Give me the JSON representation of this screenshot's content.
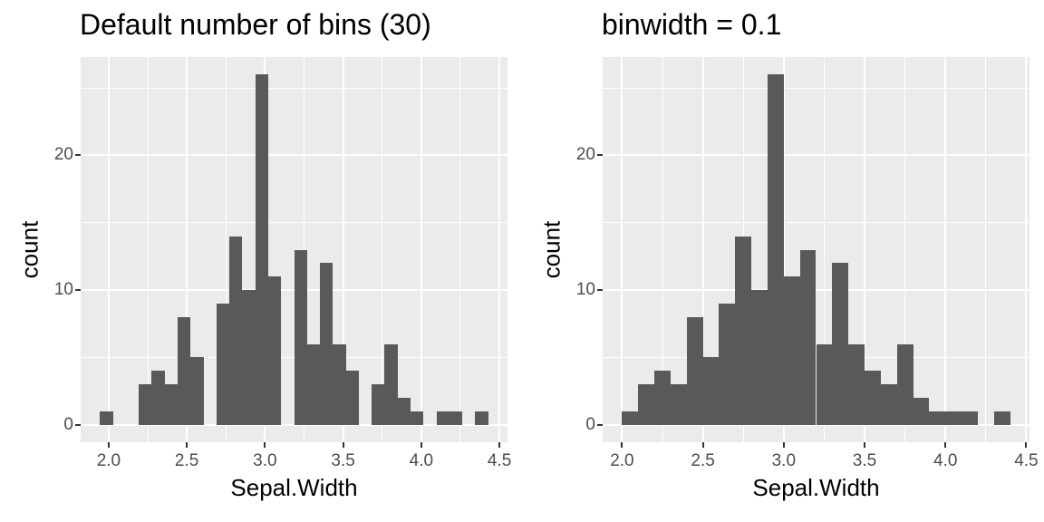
{
  "style": {
    "background": "#FFFFFF",
    "panel_bg": "#EBEBEB",
    "grid_color": "#FFFFFF",
    "bar_color": "#595959",
    "tick_text_color": "#4D4D4D",
    "tick_mark_color": "#333333",
    "title_color": "#000000"
  },
  "chart_data": [
    {
      "type": "bar",
      "subtype": "histogram",
      "title": "Default number of bins (30)",
      "xlabel": "Sepal.Width",
      "ylabel": "count",
      "bar_color": "#595959",
      "grid": true,
      "legend": false,
      "binwidth": 0.0827586,
      "x_domain": [
        1.82069,
        4.55172
      ],
      "y_domain": [
        -1.3,
        27.3
      ],
      "x_major_ticks": [
        2.0,
        2.5,
        3.0,
        3.5,
        4.0,
        4.5
      ],
      "x_tick_labels": [
        "2.0",
        "2.5",
        "3.0",
        "3.5",
        "4.0",
        "4.5"
      ],
      "x_minor_ticks": [
        2.25,
        2.75,
        3.25,
        3.75,
        4.25
      ],
      "y_major_ticks": [
        0,
        10,
        20
      ],
      "y_tick_labels": [
        "0",
        "10",
        "20"
      ],
      "y_minor_ticks": [
        5,
        15,
        25
      ],
      "bins": [
        [
          1.94483,
          1
        ],
        [
          2.1931,
          3
        ],
        [
          2.27586,
          4
        ],
        [
          2.35862,
          3
        ],
        [
          2.44138,
          8
        ],
        [
          2.52414,
          5
        ],
        [
          2.68966,
          9
        ],
        [
          2.77241,
          14
        ],
        [
          2.85517,
          10
        ],
        [
          2.93793,
          26
        ],
        [
          3.02069,
          11
        ],
        [
          3.18621,
          13
        ],
        [
          3.26897,
          6
        ],
        [
          3.35172,
          12
        ],
        [
          3.43448,
          6
        ],
        [
          3.51724,
          4
        ],
        [
          3.68276,
          3
        ],
        [
          3.76552,
          6
        ],
        [
          3.84828,
          2
        ],
        [
          3.93103,
          1
        ],
        [
          4.09655,
          1
        ],
        [
          4.17931,
          1
        ],
        [
          4.34483,
          1
        ]
      ]
    },
    {
      "type": "bar",
      "subtype": "histogram",
      "title": "binwidth = 0.1",
      "xlabel": "Sepal.Width",
      "ylabel": "count",
      "bar_color": "#595959",
      "grid": true,
      "legend": false,
      "binwidth": 0.1,
      "x_domain": [
        1.88,
        4.52
      ],
      "y_domain": [
        -1.3,
        27.3
      ],
      "x_major_ticks": [
        2.0,
        2.5,
        3.0,
        3.5,
        4.0,
        4.5
      ],
      "x_tick_labels": [
        "2.0",
        "2.5",
        "3.0",
        "3.5",
        "4.0",
        "4.5"
      ],
      "x_minor_ticks": [
        2.25,
        2.75,
        3.25,
        3.75,
        4.25
      ],
      "y_major_ticks": [
        0,
        10,
        20
      ],
      "y_tick_labels": [
        "0",
        "10",
        "20"
      ],
      "y_minor_ticks": [
        5,
        15,
        25
      ],
      "bins": [
        [
          2.0,
          1
        ],
        [
          2.1,
          3
        ],
        [
          2.2,
          4
        ],
        [
          2.3,
          3
        ],
        [
          2.4,
          8
        ],
        [
          2.5,
          5
        ],
        [
          2.6,
          9
        ],
        [
          2.7,
          14
        ],
        [
          2.8,
          10
        ],
        [
          2.9,
          26
        ],
        [
          3.0,
          11
        ],
        [
          3.1,
          13
        ],
        [
          3.2,
          6
        ],
        [
          3.3,
          12
        ],
        [
          3.4,
          6
        ],
        [
          3.5,
          4
        ],
        [
          3.6,
          3
        ],
        [
          3.7,
          6
        ],
        [
          3.8,
          2
        ],
        [
          3.9,
          1
        ],
        [
          4.0,
          1
        ],
        [
          4.1,
          1
        ],
        [
          4.3,
          1
        ]
      ]
    }
  ]
}
